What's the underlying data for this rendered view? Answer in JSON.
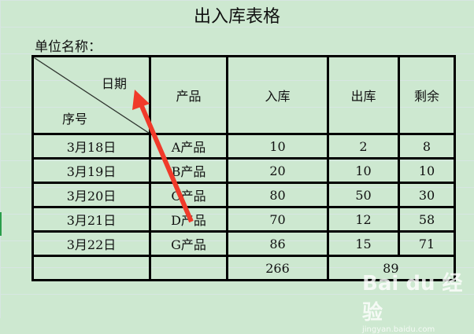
{
  "title": "出入库表格",
  "unit_label": "单位名称：",
  "header": {
    "date": "日期",
    "seq": "序号",
    "product": "产品",
    "in": "入库",
    "out": "出库",
    "remain": "剩余"
  },
  "rows": [
    {
      "date": "3月18日",
      "product": "A产品",
      "in": "10",
      "out": "2",
      "remain": "8"
    },
    {
      "date": "3月19日",
      "product": "B产品",
      "in": "20",
      "out": "10",
      "remain": "10"
    },
    {
      "date": "3月20日",
      "product": "C产品",
      "in": "80",
      "out": "50",
      "remain": "30"
    },
    {
      "date": "3月21日",
      "product": "D产品",
      "in": "70",
      "out": "12",
      "remain": "58"
    },
    {
      "date": "3月22日",
      "product": "G产品",
      "in": "86",
      "out": "15",
      "remain": "71"
    }
  ],
  "totals": {
    "in": "266",
    "out": "89"
  },
  "watermark": {
    "brand": "Bai du 经验",
    "url": "jingyan.baidu.com"
  },
  "colors": {
    "background": "#cde8d0",
    "arrow": "#f03a2a"
  }
}
